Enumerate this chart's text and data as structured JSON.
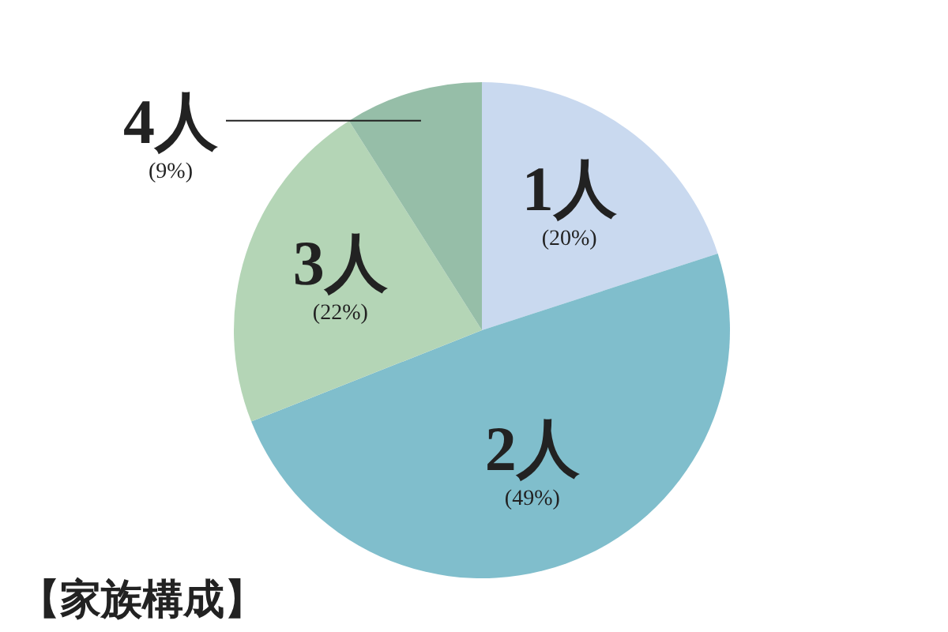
{
  "chart_data": {
    "type": "pie",
    "title": "【家族構成】",
    "categories": [
      "1人",
      "2人",
      "3人",
      "4人"
    ],
    "values": [
      20,
      49,
      22,
      9
    ],
    "value_labels": [
      "(20%)",
      "(49%)",
      "(22%)",
      "(9%)"
    ],
    "colors": [
      "#c9d9ef",
      "#80becc",
      "#b4d5b6",
      "#96bea8"
    ]
  }
}
